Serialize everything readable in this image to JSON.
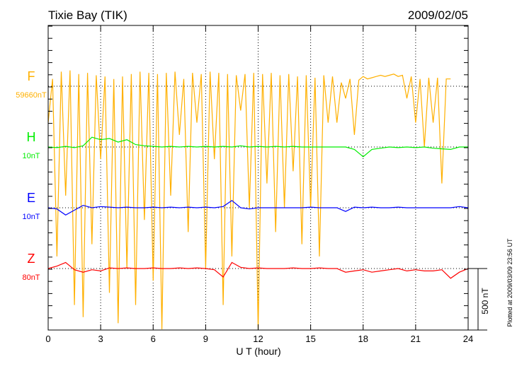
{
  "chart_data": {
    "type": "line",
    "title": "Tixie Bay (TIK)",
    "date": "2009/02/05",
    "xlabel": "U T (hour)",
    "xlim": [
      0,
      24
    ],
    "xticks": [
      "0",
      "3",
      "6",
      "9",
      "12",
      "15",
      "18",
      "21",
      "24"
    ],
    "scale_bar": "500 nT",
    "footnote": "Plotted at 2009/03/09 23:56 UT",
    "x_step_hours": {
      "F": 0.25,
      "H": 0.5,
      "E": 0.5,
      "Z": 0.5
    },
    "series": [
      {
        "name": "F",
        "baseline_label": "59660nT",
        "color": "#ffb000",
        "offset_nT": 0,
        "values": [
          -300,
          60,
          -1400,
          120,
          -900,
          130,
          -1800,
          100,
          -1900,
          110,
          -1300,
          90,
          -600,
          80,
          -1700,
          60,
          -1950,
          80,
          -1500,
          100,
          -1800,
          120,
          -1100,
          110,
          -1600,
          100,
          -2000,
          110,
          -900,
          120,
          -400,
          60,
          -1200,
          110,
          -300,
          100,
          -1500,
          120,
          -600,
          110,
          -1800,
          100,
          -1400,
          90,
          -200,
          100,
          -1000,
          110,
          -2000,
          100,
          -800,
          110,
          -1200,
          90,
          -1000,
          100,
          -700,
          80,
          -1300,
          90,
          -1000,
          70,
          -1400,
          90,
          -300,
          80,
          -300,
          30,
          -100,
          60,
          -400,
          50,
          80,
          60,
          70,
          80,
          90,
          80,
          90,
          100,
          80,
          90,
          -100,
          80,
          -300,
          60,
          -500,
          70,
          -300,
          70,
          -800,
          60,
          60
        ]
      },
      {
        "name": "H",
        "baseline_label": "10nT",
        "color": "#00ee00",
        "offset_nT": -500,
        "values": [
          0,
          -5,
          5,
          -5,
          10,
          80,
          60,
          70,
          40,
          60,
          20,
          10,
          5,
          0,
          5,
          0,
          5,
          0,
          5,
          0,
          5,
          0,
          10,
          0,
          5,
          0,
          5,
          0,
          5,
          0,
          0,
          0,
          0,
          0,
          0,
          -20,
          -80,
          -20,
          -10,
          0,
          -5,
          0,
          -5,
          0,
          -10,
          -15,
          -20,
          0,
          0
        ]
      },
      {
        "name": "E",
        "baseline_label": "10nT",
        "color": "#0000ff",
        "offset_nT": -1000,
        "values": [
          0,
          -10,
          -60,
          -20,
          20,
          0,
          10,
          5,
          0,
          5,
          0,
          0,
          5,
          0,
          5,
          0,
          5,
          0,
          5,
          0,
          10,
          60,
          0,
          -10,
          0,
          0,
          0,
          0,
          0,
          0,
          5,
          0,
          0,
          0,
          -30,
          5,
          0,
          5,
          0,
          0,
          5,
          0,
          0,
          0,
          0,
          0,
          0,
          10,
          0
        ]
      },
      {
        "name": "Z",
        "baseline_label": "80nT",
        "color": "#ff0000",
        "offset_nT": -1500,
        "values": [
          0,
          20,
          50,
          -10,
          -30,
          -10,
          -20,
          5,
          0,
          5,
          0,
          0,
          5,
          0,
          0,
          5,
          0,
          5,
          0,
          -10,
          -70,
          50,
          10,
          0,
          5,
          0,
          0,
          0,
          5,
          0,
          0,
          5,
          0,
          0,
          -30,
          -20,
          -10,
          -30,
          -20,
          -10,
          0,
          -20,
          -10,
          -20,
          -20,
          -10,
          -80,
          -30,
          0
        ]
      }
    ]
  }
}
